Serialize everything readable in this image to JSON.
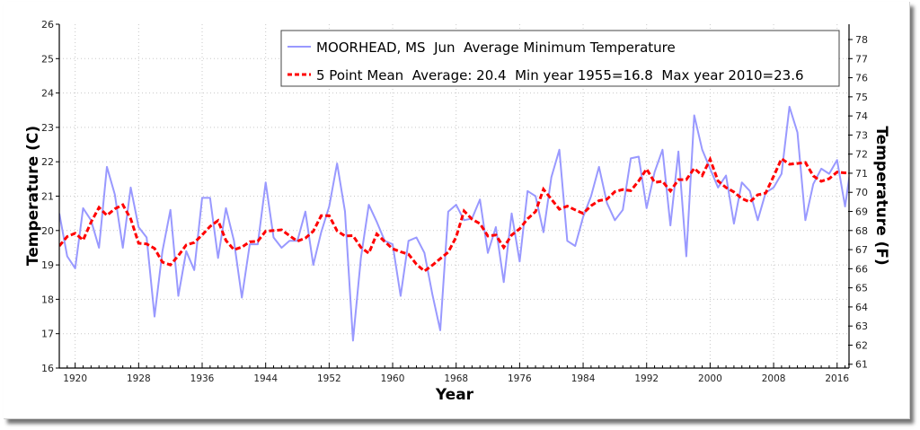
{
  "chart_data": {
    "type": "line",
    "title": "",
    "xlabel": "Year",
    "ylabel": "Temperature (C)",
    "ylabel_right": "Temperature (F)",
    "xlim": [
      1918,
      2017.5
    ],
    "ylim": [
      16,
      26
    ],
    "grid": true,
    "legend_position": "top-right",
    "x_ticks": [
      1920,
      1928,
      1936,
      1944,
      1952,
      1960,
      1968,
      1976,
      1984,
      1992,
      2000,
      2008,
      2016
    ],
    "y_ticks": [
      16,
      17,
      18,
      19,
      20,
      21,
      22,
      23,
      24,
      25,
      26
    ],
    "y_ticks_right": [
      61,
      62,
      63,
      64,
      65,
      66,
      67,
      68,
      69,
      70,
      71,
      72,
      73,
      74,
      75,
      76,
      77,
      78
    ],
    "x": [
      1918,
      1919,
      1920,
      1921,
      1922,
      1923,
      1924,
      1925,
      1926,
      1927,
      1928,
      1929,
      1930,
      1931,
      1932,
      1933,
      1934,
      1935,
      1936,
      1937,
      1938,
      1939,
      1940,
      1941,
      1942,
      1943,
      1944,
      1945,
      1946,
      1947,
      1948,
      1949,
      1950,
      1951,
      1952,
      1953,
      1954,
      1955,
      1956,
      1957,
      1958,
      1959,
      1960,
      1961,
      1962,
      1963,
      1964,
      1965,
      1966,
      1967,
      1968,
      1969,
      1970,
      1971,
      1972,
      1973,
      1974,
      1975,
      1976,
      1977,
      1978,
      1979,
      1980,
      1981,
      1982,
      1983,
      1984,
      1985,
      1986,
      1987,
      1988,
      1989,
      1990,
      1991,
      1992,
      1993,
      1994,
      1995,
      1996,
      1997,
      1998,
      1999,
      2000,
      2001,
      2002,
      2003,
      2004,
      2005,
      2006,
      2007,
      2008,
      2009,
      2010,
      2011,
      2012,
      2013,
      2014,
      2015,
      2016,
      2017,
      2018
    ],
    "series": [
      {
        "name": "MOORHEAD, MS  Jun  Average Minimum Temperature",
        "color": "#9999ff",
        "style": "solid",
        "values": [
          20.5,
          19.25,
          18.9,
          20.65,
          20.3,
          19.5,
          21.85,
          21.05,
          19.5,
          21.25,
          20.1,
          19.8,
          17.5,
          19.4,
          20.6,
          18.1,
          19.4,
          18.85,
          20.95,
          20.95,
          19.2,
          20.65,
          19.7,
          18.05,
          19.6,
          19.6,
          21.4,
          19.8,
          19.5,
          19.7,
          19.7,
          20.55,
          19.0,
          19.95,
          20.7,
          21.95,
          20.55,
          16.8,
          19.2,
          20.75,
          20.25,
          19.7,
          19.6,
          18.1,
          19.7,
          19.8,
          19.35,
          18.15,
          17.1,
          20.55,
          20.75,
          20.3,
          20.35,
          20.9,
          19.35,
          20.1,
          18.5,
          20.5,
          19.1,
          21.15,
          21.0,
          19.95,
          21.55,
          22.35,
          19.7,
          19.55,
          20.4,
          21.0,
          21.85,
          20.8,
          20.3,
          20.6,
          22.1,
          22.15,
          20.65,
          21.7,
          22.35,
          20.15,
          22.3,
          19.25,
          23.35,
          22.35,
          21.8,
          21.25,
          21.6,
          20.2,
          21.4,
          21.15,
          20.3,
          21.1,
          21.25,
          21.65,
          23.6,
          22.85,
          20.3,
          21.35,
          21.8,
          21.65,
          22.05,
          20.7,
          22.3
        ]
      },
      {
        "name": "5 Point Mean  Average: 20.4  Min year 1955=16.8  Max year 2010=23.6",
        "color": "#ff0000",
        "style": "dashed",
        "window": 5
      }
    ]
  }
}
